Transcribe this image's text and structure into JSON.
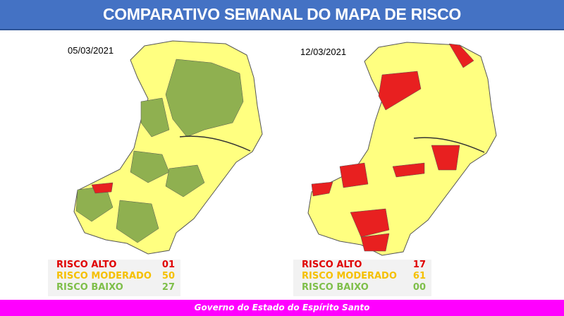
{
  "header": {
    "title": "COMPARATIVO SEMANAL DO MAPA DE RISCO"
  },
  "maps": [
    {
      "date": "05/03/2021",
      "legend": [
        {
          "label": "RISCO ALTO",
          "value": "01"
        },
        {
          "label": "RISCO MODERADO",
          "value": "50"
        },
        {
          "label": "RISCO BAIXO",
          "value": "27"
        }
      ]
    },
    {
      "date": "12/03/2021",
      "legend": [
        {
          "label": "RISCO ALTO",
          "value": "17"
        },
        {
          "label": "RISCO MODERADO",
          "value": "61"
        },
        {
          "label": "RISCO BAIXO",
          "value": "00"
        }
      ]
    }
  ],
  "colors": {
    "alto": "#e00000",
    "moderado": "#f5c000",
    "baixo": "#7fbf4a",
    "map_yellow": "#ffff80",
    "map_green": "#8fb050",
    "map_red": "#e82020"
  },
  "footer": {
    "text": "Governo do Estado do Espírito Santo"
  }
}
